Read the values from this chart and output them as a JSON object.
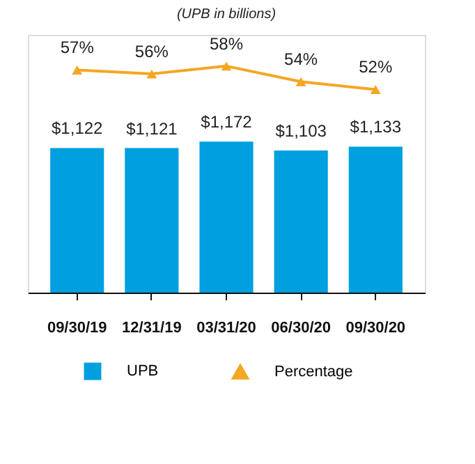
{
  "chart_data": {
    "type": "bar",
    "title": "(UPB in billions)",
    "categories": [
      "09/30/19",
      "12/31/19",
      "03/31/20",
      "06/30/20",
      "09/30/20"
    ],
    "series": [
      {
        "name": "UPB",
        "color": "#009fdf",
        "values": [
          1122,
          1121,
          1172,
          1103,
          1133
        ],
        "value_labels": [
          "$1,122",
          "$1,121",
          "$1,172",
          "$1,103",
          "$1,133"
        ]
      },
      {
        "name": "Percentage",
        "type": "line",
        "axis": "y2",
        "color": "#f5a623",
        "marker": "triangle",
        "values": [
          57,
          56,
          58,
          54,
          52
        ],
        "value_labels": [
          "57%",
          "56%",
          "58%",
          "54%",
          "52%"
        ]
      }
    ],
    "ylim": [
      0,
      2000
    ],
    "y2lim": [
      0,
      66
    ],
    "grid": false,
    "legend": "bottom",
    "tick_labels": "x"
  }
}
